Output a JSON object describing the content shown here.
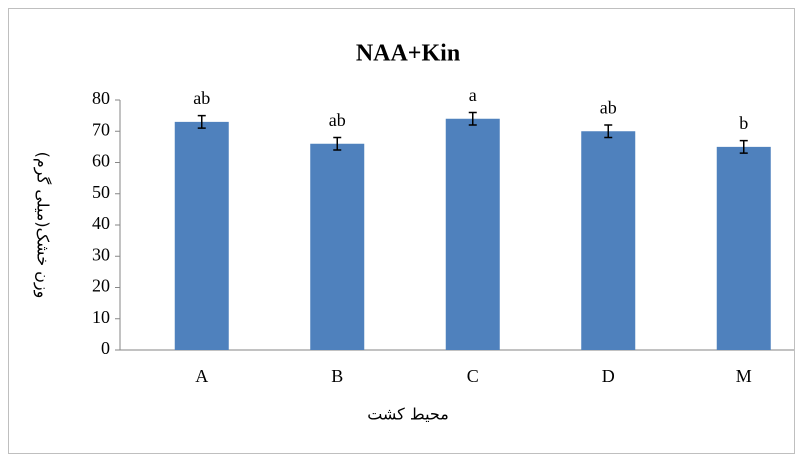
{
  "chart_data": {
    "type": "bar",
    "title": "NAA+Kin",
    "y_label": "وزن خشک(میلی گرم)",
    "x_label": "محیط کشت",
    "categories": [
      "A",
      "B",
      "C",
      "D",
      "M"
    ],
    "values": [
      73,
      66,
      74,
      70,
      65
    ],
    "errors": [
      2,
      2,
      2,
      2,
      2
    ],
    "annotations": [
      "ab",
      "ab",
      "a",
      "ab",
      "b"
    ],
    "color": "#4f81bd",
    "ylim": [
      0,
      80
    ],
    "yticks": [
      0,
      10,
      20,
      30,
      40,
      50,
      60,
      70,
      80
    ],
    "grid": false
  }
}
